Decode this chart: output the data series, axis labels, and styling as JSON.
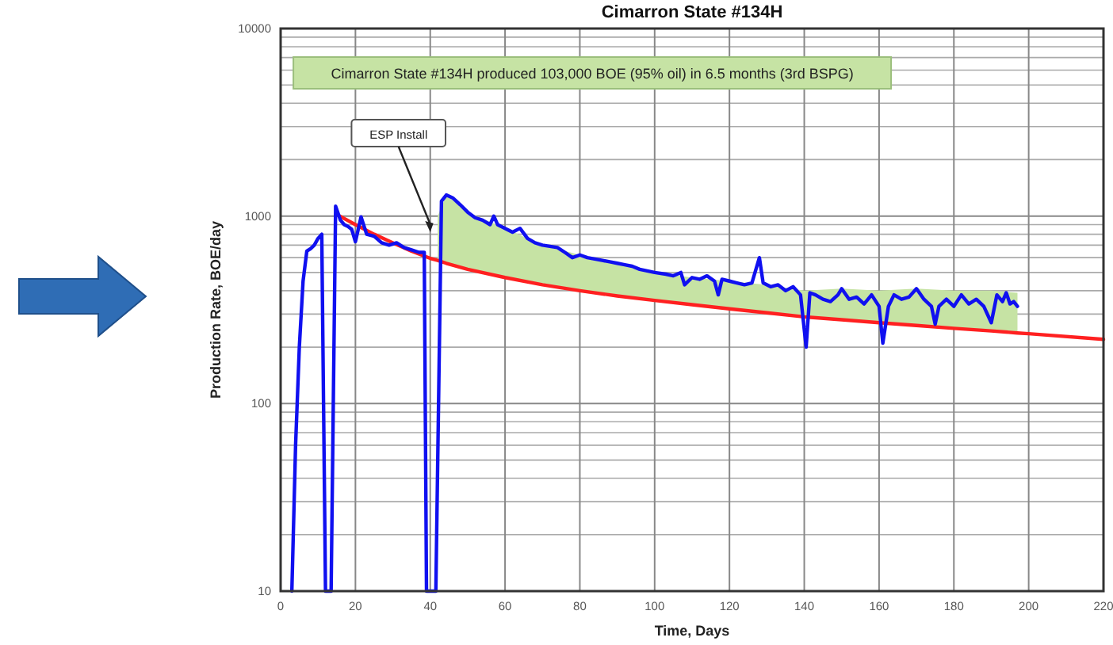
{
  "chart_data": {
    "type": "line",
    "title": "Cimarron State #134H",
    "xlabel": "Time, Days",
    "ylabel": "Production Rate, BOE/day",
    "xlim": [
      0,
      220
    ],
    "xticks": [
      0,
      20,
      40,
      60,
      80,
      100,
      120,
      140,
      160,
      180,
      200,
      220
    ],
    "ylim": [
      10,
      10000
    ],
    "yticks": [
      10,
      100,
      1000,
      10000
    ],
    "log": "y",
    "grid": true,
    "marker": "none",
    "line_style": "solid",
    "annotations": [
      {
        "text": "ESP Install",
        "x": 40,
        "y": 820
      },
      "Cimarron State #134H produced 103,000 BOE (95% oil) in 6.5 months (3rd BSPG)"
    ],
    "series": [
      {
        "color": "#ff2020",
        "x": [
          15,
          20,
          25,
          30,
          35,
          40,
          42,
          44.3,
          50,
          60,
          70,
          80,
          90,
          100,
          110,
          120,
          130,
          140,
          150,
          160,
          170,
          180,
          190,
          197,
          200,
          220
        ],
        "values": [
          1020,
          900,
          800,
          720,
          650,
          595,
          580,
          560,
          520,
          470,
          430,
          400,
          375,
          355,
          337,
          320,
          305,
          290,
          280,
          270,
          261,
          252,
          244,
          238,
          236,
          220
        ],
        "lower": [
          null,
          null,
          null,
          null,
          null,
          null,
          580,
          560,
          520,
          470,
          430,
          400,
          375,
          355,
          337,
          320,
          305,
          290,
          280,
          270,
          261,
          252,
          244,
          238,
          null,
          null
        ],
        "upper": [
          null,
          null,
          null,
          null,
          null,
          null,
          1000,
          1295,
          1050,
          860,
          700,
          620,
          560,
          500,
          470,
          450,
          430,
          400,
          410,
          400,
          410,
          400,
          400,
          390,
          null,
          null
        ]
      },
      {
        "color": "#1010f0",
        "x": [
          3,
          4,
          5,
          6,
          7,
          8,
          9,
          10,
          11,
          12,
          13.5,
          14.7,
          16,
          17,
          18,
          19,
          20,
          21.5,
          23,
          25,
          27,
          29,
          31,
          33,
          35,
          37,
          38.4,
          39,
          41.5,
          43,
          44.3,
          46,
          48,
          50,
          52,
          54,
          56,
          57,
          58,
          60,
          62,
          64,
          66,
          68,
          70,
          72,
          74,
          76,
          78,
          80,
          82,
          84,
          86,
          88,
          90,
          92,
          94,
          96,
          98,
          100,
          103,
          105,
          107,
          108,
          110,
          112,
          114,
          116,
          117,
          118,
          120,
          122,
          124,
          126,
          128,
          129,
          131,
          133,
          135,
          137,
          139,
          140.5,
          141.5,
          143,
          145,
          147,
          149,
          150,
          152,
          154,
          156,
          158,
          160,
          161,
          162.5,
          164,
          166,
          168,
          170,
          172,
          174,
          175,
          176,
          178,
          180,
          182,
          184,
          186,
          188,
          190,
          191.5,
          193,
          194,
          195,
          196,
          197
        ],
        "values": [
          10,
          60,
          200,
          450,
          650,
          670,
          700,
          760,
          800,
          10,
          10,
          1130,
          950,
          900,
          880,
          850,
          730,
          990,
          800,
          780,
          720,
          700,
          720,
          680,
          660,
          640,
          640,
          10,
          10,
          1200,
          1295,
          1250,
          1150,
          1050,
          980,
          950,
          900,
          1000,
          900,
          860,
          820,
          860,
          760,
          720,
          700,
          690,
          680,
          640,
          600,
          620,
          600,
          590,
          580,
          570,
          560,
          550,
          540,
          520,
          510,
          500,
          490,
          480,
          500,
          430,
          470,
          460,
          480,
          450,
          380,
          460,
          450,
          440,
          430,
          440,
          600,
          440,
          420,
          430,
          400,
          420,
          380,
          200,
          390,
          380,
          360,
          350,
          380,
          410,
          360,
          370,
          340,
          380,
          330,
          210,
          330,
          380,
          360,
          370,
          410,
          360,
          330,
          265,
          330,
          360,
          330,
          380,
          340,
          360,
          330,
          270,
          380,
          350,
          390,
          340,
          350,
          330
        ]
      }
    ]
  }
}
